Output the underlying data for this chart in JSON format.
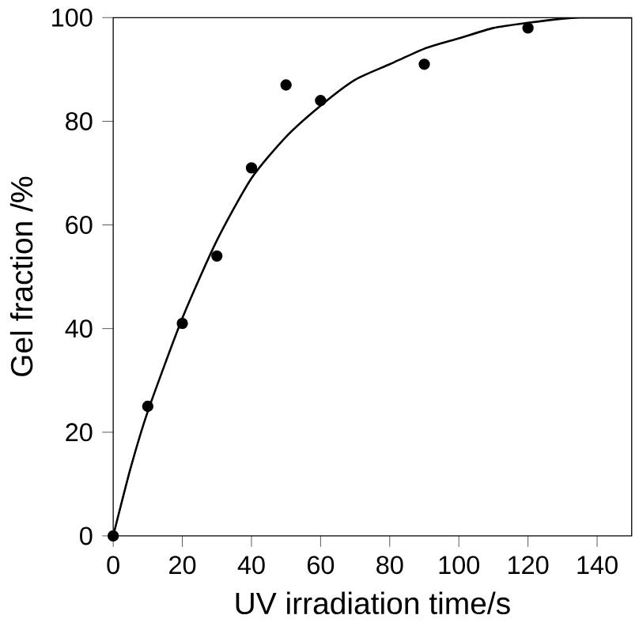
{
  "chart_data": {
    "type": "scatter",
    "xlabel": "UV irradiation time/s",
    "ylabel": "Gel fraction /%",
    "xlim": [
      0,
      150
    ],
    "ylim": [
      0,
      100
    ],
    "xticks": [
      0,
      20,
      40,
      60,
      80,
      100,
      120,
      140
    ],
    "yticks": [
      0,
      20,
      40,
      60,
      80,
      100
    ],
    "grid": false,
    "series": [
      {
        "marker": "circle",
        "color": "#000000",
        "x": [
          0,
          10,
          20,
          30,
          40,
          50,
          60,
          90,
          120
        ],
        "values": [
          0,
          25,
          41,
          54,
          71,
          87,
          84,
          91,
          98
        ]
      },
      {
        "type": "line",
        "marker": "none",
        "color": "#000000",
        "x": [
          0,
          5,
          10,
          20,
          30,
          40,
          50,
          60,
          70,
          80,
          90,
          100,
          110,
          120,
          130,
          135,
          150
        ],
        "values": [
          0,
          13,
          24,
          42,
          57,
          69,
          77,
          83,
          88,
          91,
          94,
          96,
          98,
          99,
          99.8,
          100,
          100
        ]
      }
    ]
  }
}
